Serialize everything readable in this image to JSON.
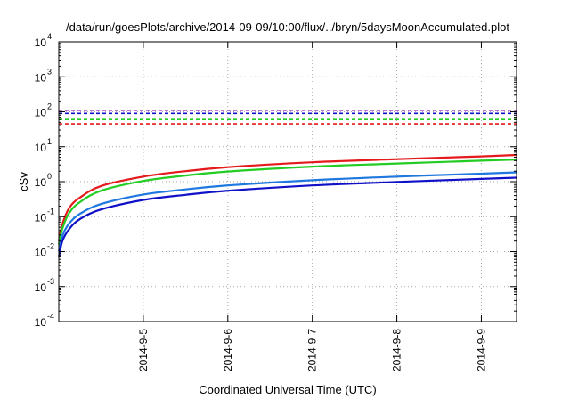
{
  "chart_data": {
    "type": "line",
    "title": "/data/run/goesPlots/archive/2014-09-09/10:00/flux/../bryn/5daysMoonAccumulated.plot",
    "xlabel": "Coordinated Universal Time (UTC)",
    "ylabel": "cSv",
    "y_scale": "log",
    "ylim": [
      0.0001,
      10000
    ],
    "y_tick_exponents": [
      -4,
      -3,
      -2,
      -1,
      0,
      1,
      2,
      3,
      4
    ],
    "xlim": [
      "2014-09-04 00:00",
      "2014-09-09 10:00"
    ],
    "x_ticks": [
      "2014-9-5",
      "2014-9-6",
      "2014-9-7",
      "2014-9-8",
      "2014-9-9"
    ],
    "grid": true,
    "series": [
      {
        "color": "#e41a1c",
        "x": [
          "2014-09-04 00:00",
          "2014-09-04 01:00",
          "2014-09-04 03:00",
          "2014-09-04 06:00",
          "2014-09-04 12:00",
          "2014-09-05 00:00",
          "2014-09-05 12:00",
          "2014-09-06 00:00",
          "2014-09-07 00:00",
          "2014-09-08 00:00",
          "2014-09-09 00:00",
          "2014-09-09 10:00"
        ],
        "values": [
          0.02,
          0.06,
          0.18,
          0.35,
          0.75,
          1.4,
          2.0,
          2.6,
          3.6,
          4.4,
          5.3,
          5.8
        ]
      },
      {
        "color": "#22cc22",
        "x": [
          "2014-09-04 00:00",
          "2014-09-04 01:00",
          "2014-09-04 03:00",
          "2014-09-04 06:00",
          "2014-09-04 12:00",
          "2014-09-05 00:00",
          "2014-09-05 12:00",
          "2014-09-06 00:00",
          "2014-09-07 00:00",
          "2014-09-08 00:00",
          "2014-09-09 00:00",
          "2014-09-09 10:00"
        ],
        "values": [
          0.016,
          0.045,
          0.13,
          0.26,
          0.55,
          1.05,
          1.5,
          1.95,
          2.7,
          3.3,
          4.0,
          4.3
        ]
      },
      {
        "color": "#1e78e0",
        "x": [
          "2014-09-04 00:00",
          "2014-09-04 01:00",
          "2014-09-04 03:00",
          "2014-09-04 06:00",
          "2014-09-04 12:00",
          "2014-09-05 00:00",
          "2014-09-05 12:00",
          "2014-09-06 00:00",
          "2014-09-07 00:00",
          "2014-09-08 00:00",
          "2014-09-09 00:00",
          "2014-09-09 10:00"
        ],
        "values": [
          0.01,
          0.028,
          0.065,
          0.12,
          0.23,
          0.43,
          0.6,
          0.78,
          1.1,
          1.4,
          1.7,
          1.85
        ]
      },
      {
        "color": "#1010c8",
        "x": [
          "2014-09-04 00:00",
          "2014-09-04 01:00",
          "2014-09-04 03:00",
          "2014-09-04 06:00",
          "2014-09-04 12:00",
          "2014-09-05 00:00",
          "2014-09-05 12:00",
          "2014-09-06 00:00",
          "2014-09-07 00:00",
          "2014-09-08 00:00",
          "2014-09-09 00:00",
          "2014-09-09 10:00"
        ],
        "values": [
          0.007,
          0.02,
          0.045,
          0.085,
          0.16,
          0.3,
          0.42,
          0.55,
          0.78,
          0.98,
          1.2,
          1.3
        ]
      }
    ],
    "threshold_lines": [
      {
        "value": 110,
        "color": "#a020c0",
        "style": "dashed"
      },
      {
        "value": 90,
        "color": "#1010c8",
        "style": "dashed"
      },
      {
        "value": 60,
        "color": "#22cc22",
        "style": "dashed"
      },
      {
        "value": 45,
        "color": "#e41a1c",
        "style": "dashed"
      }
    ]
  }
}
